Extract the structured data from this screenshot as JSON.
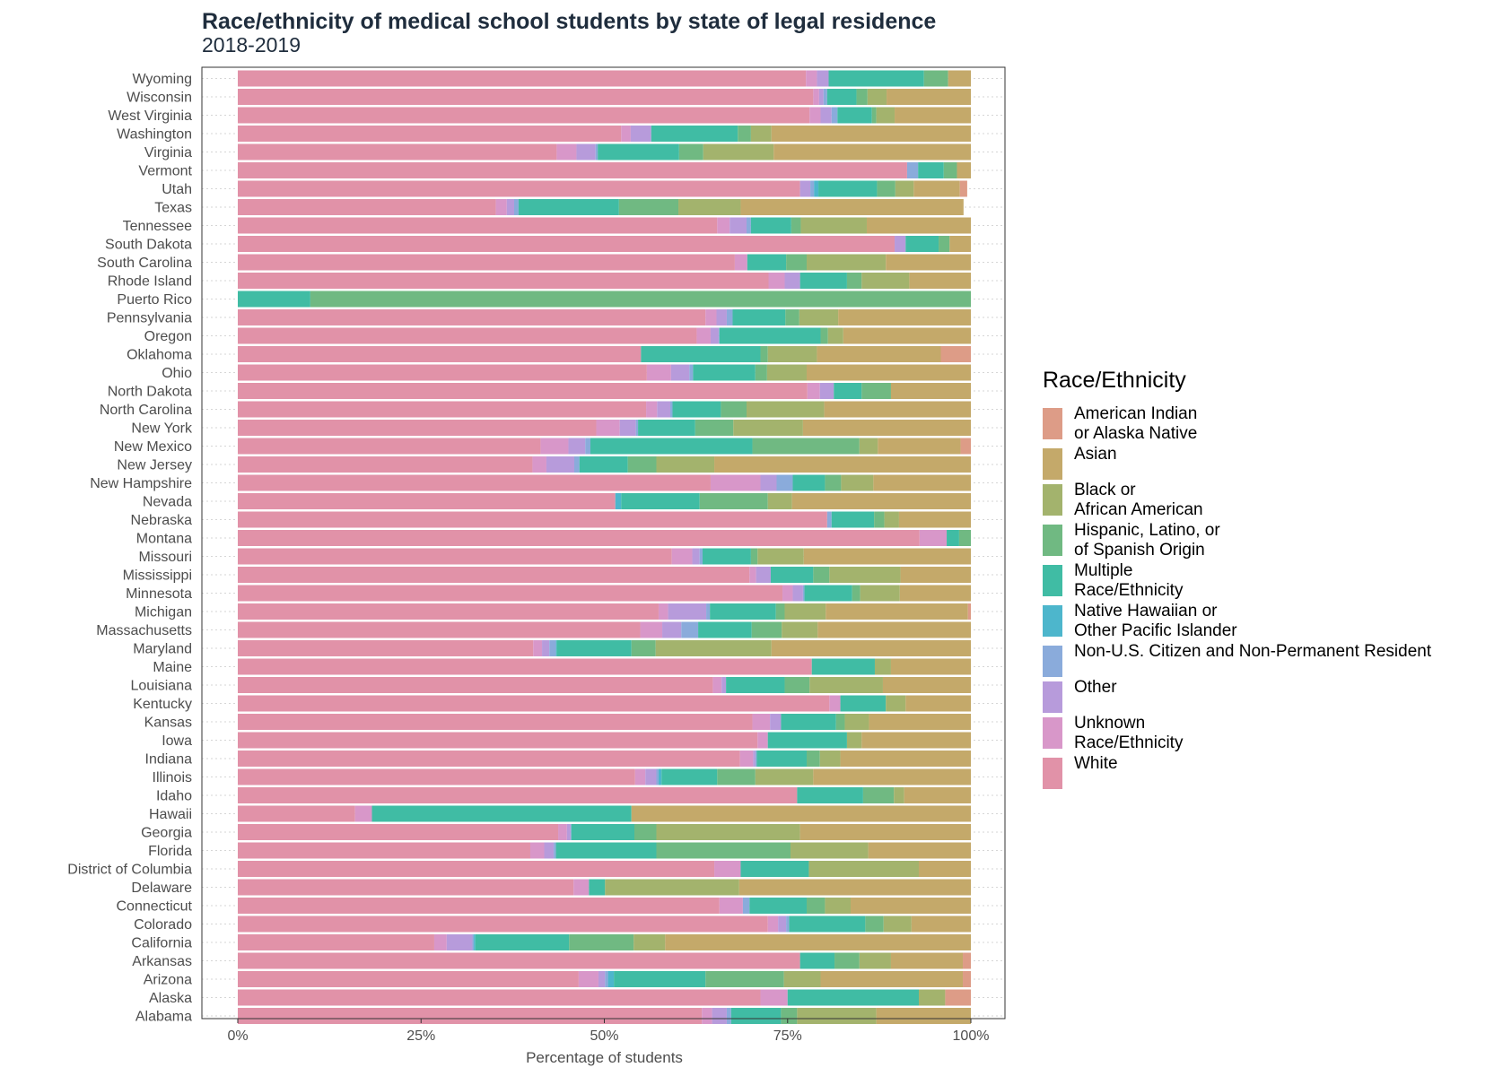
{
  "title": "Race/ethnicity of medical school students by state of legal residence",
  "subtitle": "2018-2019",
  "chart_data": {
    "type": "bar",
    "orientation": "horizontal",
    "stacked": "percent",
    "xlabel": "Percentage of students",
    "ylabel": "",
    "xlim": [
      0,
      100
    ],
    "x_ticks": [
      "0%",
      "25%",
      "50%",
      "75%",
      "100%"
    ],
    "grid": true,
    "legend_position": "right",
    "legend_title": "Race/Ethnicity",
    "series_order": [
      "White",
      "Unknown Race/Ethnicity",
      "Other",
      "Non-U.S. Citizen and Non-Permanent Resident",
      "Native Hawaiian or Other Pacific Islander",
      "Multiple Race/Ethnicity",
      "Hispanic, Latino, or of Spanish Origin",
      "Black or African American",
      "Asian",
      "American Indian or Alaska Native"
    ],
    "legend": [
      {
        "key": "American Indian or Alaska Native",
        "label": "American Indian\nor Alaska Native",
        "color": "#dd9c87"
      },
      {
        "key": "Asian",
        "label": "Asian",
        "color": "#c4a96a"
      },
      {
        "key": "Black or African American",
        "label": "Black or\nAfrican American",
        "color": "#a3b36d"
      },
      {
        "key": "Hispanic, Latino, or of Spanish Origin",
        "label": "Hispanic, Latino, or\nof Spanish Origin",
        "color": "#70b982"
      },
      {
        "key": "Multiple Race/Ethnicity",
        "label": "Multiple\nRace/Ethnicity",
        "color": "#40bca4"
      },
      {
        "key": "Native Hawaiian or Other Pacific Islander",
        "label": "Native Hawaiian or\nOther Pacific Islander",
        "color": "#4db6cc"
      },
      {
        "key": "Non-U.S. Citizen and Non-Permanent Resident",
        "label": "Non-U.S. Citizen and Non-Permanent Resident",
        "color": "#8aabdb"
      },
      {
        "key": "Other",
        "label": "Other",
        "color": "#b79bdb"
      },
      {
        "key": "Unknown Race/Ethnicity",
        "label": "Unknown\nRace/Ethnicity",
        "color": "#d897c9"
      },
      {
        "key": "White",
        "label": "White",
        "color": "#e192a8"
      }
    ],
    "categories": [
      "Wyoming",
      "Wisconsin",
      "West Virginia",
      "Washington",
      "Virginia",
      "Vermont",
      "Utah",
      "Texas",
      "Tennessee",
      "South Dakota",
      "South Carolina",
      "Rhode Island",
      "Puerto Rico",
      "Pennsylvania",
      "Oregon",
      "Oklahoma",
      "Ohio",
      "North Dakota",
      "North Carolina",
      "New York",
      "New Mexico",
      "New Jersey",
      "New Hampshire",
      "Nevada",
      "Nebraska",
      "Montana",
      "Missouri",
      "Mississippi",
      "Minnesota",
      "Michigan",
      "Massachusetts",
      "Maryland",
      "Maine",
      "Louisiana",
      "Kentucky",
      "Kansas",
      "Iowa",
      "Indiana",
      "Illinois",
      "Idaho",
      "Hawaii",
      "Georgia",
      "Florida",
      "District of Columbia",
      "Delaware",
      "Connecticut",
      "Colorado",
      "California",
      "Arkansas",
      "Arizona",
      "Alaska",
      "Alabama"
    ],
    "values": [
      [
        77.5,
        1.5,
        1.6,
        0,
        0,
        13,
        3.3,
        0,
        3.1,
        0
      ],
      [
        78.5,
        0.8,
        0.6,
        0.5,
        0,
        4,
        1.5,
        2.6,
        11.5,
        0
      ],
      [
        78,
        1.5,
        1.5,
        0.8,
        0,
        4.7,
        0.6,
        2.5,
        10.4,
        0
      ],
      [
        52.3,
        1.3,
        2.8,
        0,
        0,
        11.8,
        1.8,
        2.8,
        27.2,
        0
      ],
      [
        43.5,
        2.7,
        2.6,
        0.3,
        0,
        11.1,
        3.3,
        9.6,
        26.9,
        0
      ],
      [
        91.3,
        0,
        0,
        1.5,
        0,
        3.5,
        1.8,
        0,
        1.9,
        0
      ],
      [
        76.7,
        0,
        1.4,
        0.5,
        0.6,
        8,
        2.5,
        2.5,
        6.3,
        1
      ],
      [
        35.2,
        1.5,
        1,
        0.6,
        0,
        13.7,
        8.1,
        8.5,
        30.4,
        0
      ],
      [
        65.4,
        1.7,
        2.3,
        0.6,
        0,
        5.5,
        1.3,
        9,
        14.2,
        0
      ],
      [
        89.6,
        0,
        1.5,
        0,
        0,
        4.5,
        1.5,
        0,
        2.9,
        0
      ],
      [
        67.8,
        1.7,
        0,
        0,
        0,
        5.3,
        2.8,
        10.8,
        11.6,
        0
      ],
      [
        72.4,
        2.2,
        2.1,
        0,
        0,
        6.4,
        2,
        6.5,
        8.4,
        0
      ],
      [
        0,
        0,
        0,
        0,
        0,
        9.9,
        90.1,
        0,
        0,
        0
      ],
      [
        63.8,
        1.5,
        1.4,
        0.8,
        0,
        7.2,
        1.9,
        5.3,
        18.1,
        0
      ],
      [
        62.6,
        1.9,
        1.1,
        0.1,
        0,
        13.8,
        1,
        2.1,
        17.4,
        0
      ],
      [
        55,
        0,
        0,
        0,
        0,
        16.3,
        1,
        6.7,
        16.9,
        4.1
      ],
      [
        55.8,
        3.3,
        2.5,
        0.5,
        0,
        8.5,
        1.6,
        5.4,
        22.4,
        0
      ],
      [
        77.7,
        1.7,
        1.9,
        0,
        0,
        3.8,
        4,
        0,
        10.9,
        0
      ],
      [
        55.7,
        1.5,
        1.8,
        0.3,
        0,
        6.6,
        3.5,
        10.6,
        20,
        0
      ],
      [
        48.9,
        3.2,
        2.2,
        0.3,
        0,
        7.8,
        5.2,
        9.5,
        22.9,
        0
      ],
      [
        41.3,
        3.8,
        2.3,
        0.7,
        0,
        22.1,
        14.6,
        2.5,
        11.3,
        1.4
      ],
      [
        40.2,
        1.9,
        3.8,
        0.7,
        0,
        6.6,
        3.9,
        7.9,
        35,
        0
      ],
      [
        64.5,
        6.8,
        2.2,
        2.2,
        0,
        4.4,
        2.2,
        4.4,
        13.3,
        0
      ],
      [
        51.5,
        0,
        0,
        0,
        0.8,
        10.7,
        9.3,
        3.3,
        24.4,
        0
      ],
      [
        80.4,
        0,
        0,
        0.6,
        0,
        5.8,
        1.4,
        2,
        9.8,
        0
      ],
      [
        93,
        3.7,
        0,
        0,
        0,
        1.7,
        1.6,
        0,
        0,
        0
      ],
      [
        59.2,
        2.8,
        1,
        0.4,
        0,
        6.6,
        0.9,
        6.3,
        22.8,
        0
      ],
      [
        69.8,
        0.9,
        2,
        0,
        0,
        5.8,
        2.2,
        9.7,
        9.6,
        0
      ],
      [
        74.3,
        1.4,
        1.4,
        0.2,
        0,
        6.5,
        1.1,
        5.4,
        9.7,
        0
      ],
      [
        57.4,
        1.3,
        5.2,
        0.5,
        0,
        9,
        1.2,
        5.6,
        19.4,
        0.4
      ],
      [
        54.9,
        3,
        2.6,
        2.3,
        0,
        7.3,
        4.1,
        4.9,
        20.9,
        0
      ],
      [
        40.3,
        1.2,
        1,
        0.9,
        0.1,
        10.2,
        3.3,
        15.8,
        27.2,
        0
      ],
      [
        78.3,
        0,
        0,
        0,
        0,
        8.6,
        0,
        2.2,
        10.9,
        0
      ],
      [
        64.8,
        1.2,
        0.6,
        0,
        0,
        8,
        3.4,
        10,
        12,
        0
      ],
      [
        80.7,
        1.5,
        0,
        0,
        0,
        6.2,
        0,
        2.7,
        8.9,
        0
      ],
      [
        70.2,
        2.4,
        1.5,
        0,
        0,
        7.5,
        1.2,
        3.3,
        13.9,
        0
      ],
      [
        70.9,
        1.4,
        0,
        0,
        0,
        10.8,
        0,
        2,
        14.9,
        0
      ],
      [
        68.5,
        1.8,
        0.3,
        0.2,
        0,
        6.8,
        1.8,
        2.8,
        17.8,
        0
      ],
      [
        54.2,
        1.4,
        1.5,
        0.3,
        0.4,
        7.6,
        5.2,
        7.9,
        21.5,
        0
      ],
      [
        76.3,
        0,
        0,
        0,
        0,
        9,
        4.2,
        1.4,
        9.1,
        0
      ],
      [
        16,
        2.3,
        0,
        0,
        0,
        35.4,
        0,
        0,
        46.3,
        0
      ],
      [
        43.7,
        1.2,
        0.5,
        0.1,
        0,
        8.6,
        3,
        19.6,
        23.3,
        0
      ],
      [
        39.9,
        1.9,
        1.3,
        0.3,
        0,
        13.7,
        18.3,
        10.6,
        14,
        0
      ],
      [
        65,
        3.6,
        0,
        0,
        0,
        9.3,
        0,
        15,
        7.1,
        0
      ],
      [
        45.8,
        2.1,
        0,
        0,
        0,
        2.2,
        0,
        18.3,
        31.6,
        0
      ],
      [
        65.7,
        3.2,
        0,
        0.9,
        0,
        7.8,
        2.5,
        3.5,
        16.4,
        0
      ],
      [
        72.3,
        1.4,
        1.1,
        0.4,
        0,
        10.4,
        2.5,
        3.8,
        8.1,
        0
      ],
      [
        26.8,
        1.7,
        3.5,
        0.2,
        0.2,
        12.8,
        8.8,
        4.3,
        41.7,
        0
      ],
      [
        76.7,
        0,
        0,
        0,
        0,
        4.7,
        3.4,
        4.3,
        9.8,
        1.1
      ],
      [
        46.5,
        2.7,
        0.9,
        0.4,
        0.8,
        12.5,
        10.7,
        5,
        19.4,
        1.1
      ],
      [
        71.3,
        3.7,
        0,
        0,
        0,
        17.9,
        0,
        3.6,
        0,
        3.5
      ],
      [
        63.3,
        1.4,
        2,
        0.6,
        0,
        6.8,
        2.2,
        10.8,
        12.9,
        0
      ]
    ]
  }
}
